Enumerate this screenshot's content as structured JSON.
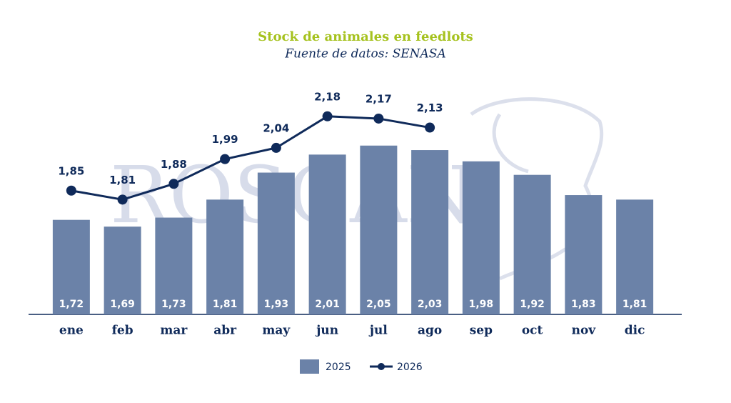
{
  "chart_data": {
    "type": "combo",
    "title": "Stock de animales en feedlots",
    "subtitle": "Fuente de datos: SENASA",
    "watermark": "ROSGAN",
    "categories": [
      "ene",
      "feb",
      "mar",
      "abr",
      "may",
      "jun",
      "jul",
      "ago",
      "sep",
      "oct",
      "nov",
      "dic"
    ],
    "ylim": [
      1.3,
      2.4
    ],
    "series": [
      {
        "name": "2025",
        "type": "bar",
        "color": "#6b82a8",
        "values": [
          1.72,
          1.69,
          1.73,
          1.81,
          1.93,
          2.01,
          2.05,
          2.03,
          1.98,
          1.92,
          1.83,
          1.81
        ],
        "value_labels": [
          "1,72",
          "1,69",
          "1,73",
          "1,81",
          "1,93",
          "2,01",
          "2,05",
          "2,03",
          "1,98",
          "1,92",
          "1,83",
          "1,81"
        ]
      },
      {
        "name": "2026",
        "type": "line",
        "color": "#0f2a5a",
        "values": [
          1.85,
          1.81,
          1.88,
          1.99,
          2.04,
          2.18,
          2.17,
          2.13,
          null,
          null,
          null,
          null
        ],
        "value_labels": [
          "1,85",
          "1,81",
          "1,88",
          "1,99",
          "2,04",
          "2,18",
          "2,17",
          "2,13",
          null,
          null,
          null,
          null
        ]
      }
    ]
  }
}
